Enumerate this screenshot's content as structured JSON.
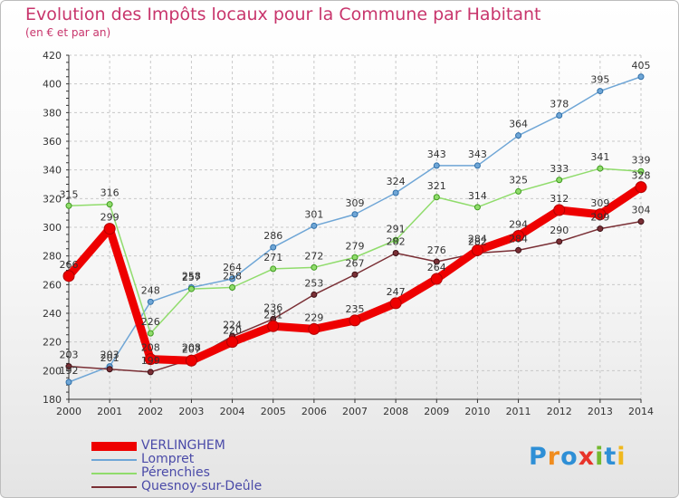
{
  "header": {
    "title": "Evolution des Impôts locaux pour la Commune par Habitant",
    "subtitle": "(en € et par an)"
  },
  "brand": {
    "text": "Proxiti",
    "colors": [
      "#2e8fd6",
      "#f08c1e",
      "#2e8fd6",
      "#e8332a",
      "#74b92f",
      "#2e8fd6",
      "#f0b81e"
    ]
  },
  "chart_data": {
    "type": "line",
    "title": "Evolution des Impôts locaux pour la Commune par Habitant",
    "subtitle": "(en € et par an)",
    "x": [
      2000,
      2001,
      2002,
      2003,
      2004,
      2005,
      2006,
      2007,
      2008,
      2009,
      2010,
      2011,
      2012,
      2013,
      2014
    ],
    "ylim": [
      180,
      420
    ],
    "yticks": [
      180,
      200,
      220,
      240,
      260,
      280,
      300,
      320,
      340,
      360,
      380,
      400,
      420
    ],
    "grid": true,
    "legend_position": "bottom-left",
    "series": [
      {
        "name": "VERLINGHEM",
        "color": "#ee0000",
        "values": [
          266,
          299,
          208,
          207,
          220,
          231,
          229,
          235,
          247,
          264,
          284,
          294,
          312,
          309,
          328
        ]
      },
      {
        "name": "Lompret",
        "color": "#6fa6d6",
        "values": [
          192,
          203,
          248,
          258,
          264,
          286,
          301,
          309,
          324,
          343,
          343,
          364,
          378,
          395,
          405
        ]
      },
      {
        "name": "Pérenchies",
        "color": "#90dc6c",
        "values": [
          315,
          316,
          226,
          257,
          258,
          271,
          272,
          279,
          291,
          321,
          314,
          325,
          333,
          341,
          339
        ]
      },
      {
        "name": "Quesnoy-sur-Deûle",
        "color": "#7a2f35",
        "values": [
          203,
          201,
          199,
          208,
          224,
          236,
          253,
          267,
          282,
          276,
          282,
          284,
          290,
          299,
          304
        ]
      }
    ]
  }
}
